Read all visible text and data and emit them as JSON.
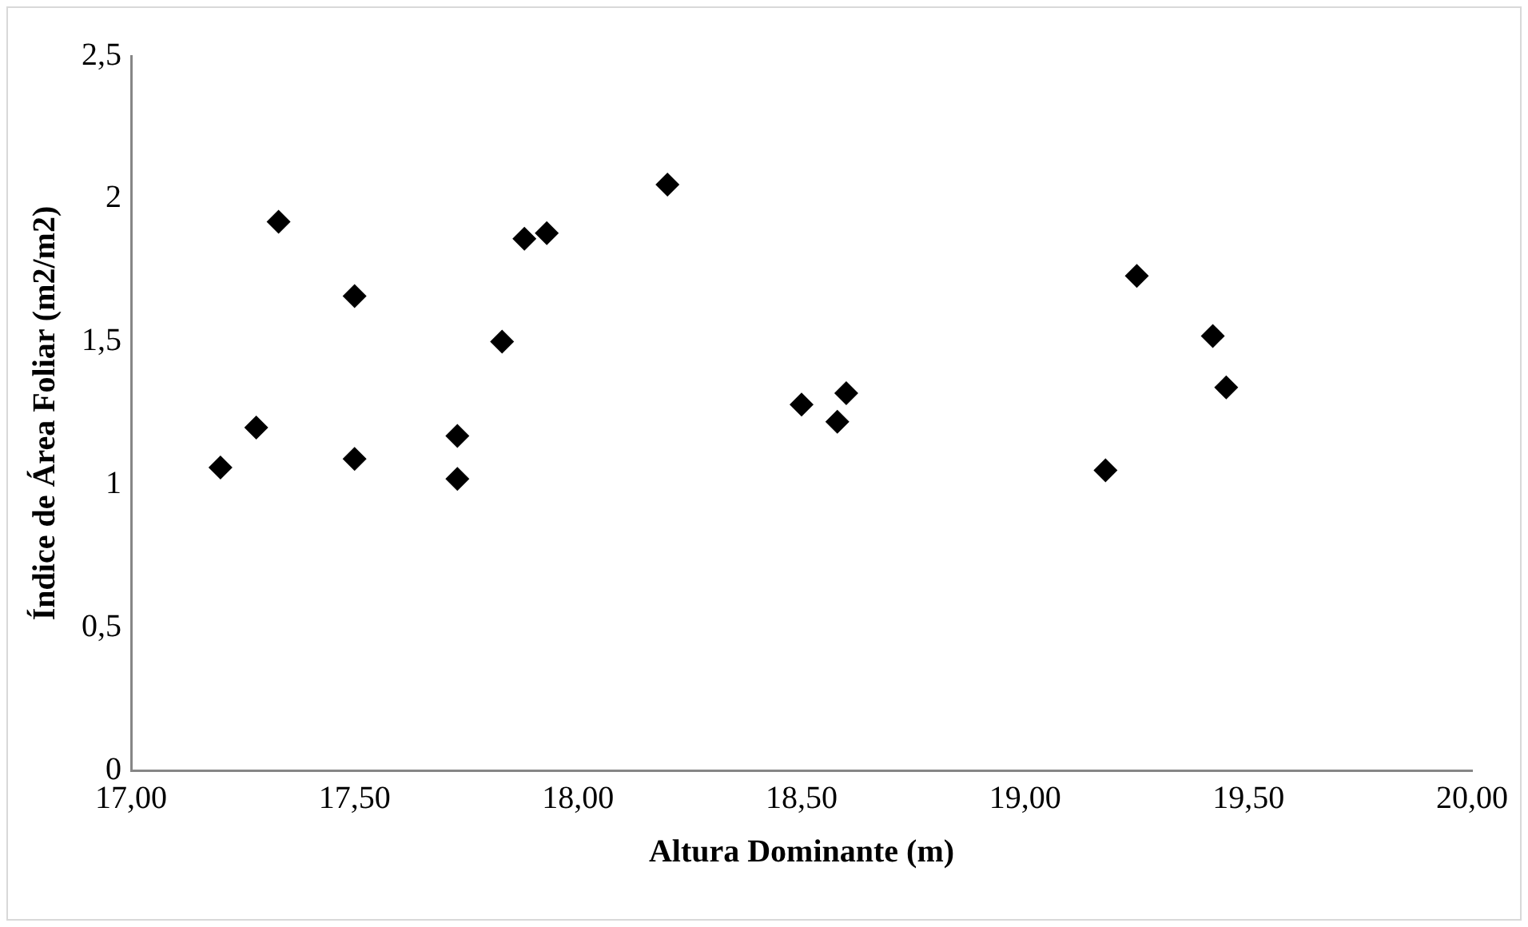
{
  "chart_data": {
    "type": "scatter",
    "xlabel": "Altura Dominante (m)",
    "ylabel": "Índice de Área Foliar (m2/m2)",
    "x": [
      17.2,
      17.28,
      17.33,
      17.5,
      17.5,
      17.73,
      17.73,
      17.83,
      17.88,
      17.93,
      18.2,
      18.5,
      18.6,
      18.58,
      19.25,
      19.42,
      19.45,
      19.18
    ],
    "series": [
      {
        "color": "#000000",
        "values": [
          1.06,
          1.2,
          1.92,
          1.66,
          1.09,
          1.17,
          1.02,
          1.5,
          1.86,
          1.88,
          2.05,
          1.28,
          1.32,
          1.22,
          1.73,
          1.52,
          1.34,
          1.05
        ]
      }
    ],
    "xlim": [
      17,
      20
    ],
    "xticks": [
      {
        "value": 17,
        "label": "17,00"
      },
      {
        "value": 17.5,
        "label": "17,50"
      },
      {
        "value": 18,
        "label": "18,00"
      },
      {
        "value": 18.5,
        "label": "18,50"
      },
      {
        "value": 19,
        "label": "19,00"
      },
      {
        "value": 19.5,
        "label": "19,50"
      },
      {
        "value": 20,
        "label": "20,00"
      }
    ],
    "ylim": [
      0,
      2.5
    ],
    "yticks": [
      0,
      {
        "value": 0.5,
        "label": "0,5"
      },
      1,
      {
        "value": 1.5,
        "label": "1,5"
      },
      2,
      {
        "value": 2.5,
        "label": "2,5"
      }
    ],
    "marker": "diamond",
    "grid": false,
    "legend": false
  }
}
